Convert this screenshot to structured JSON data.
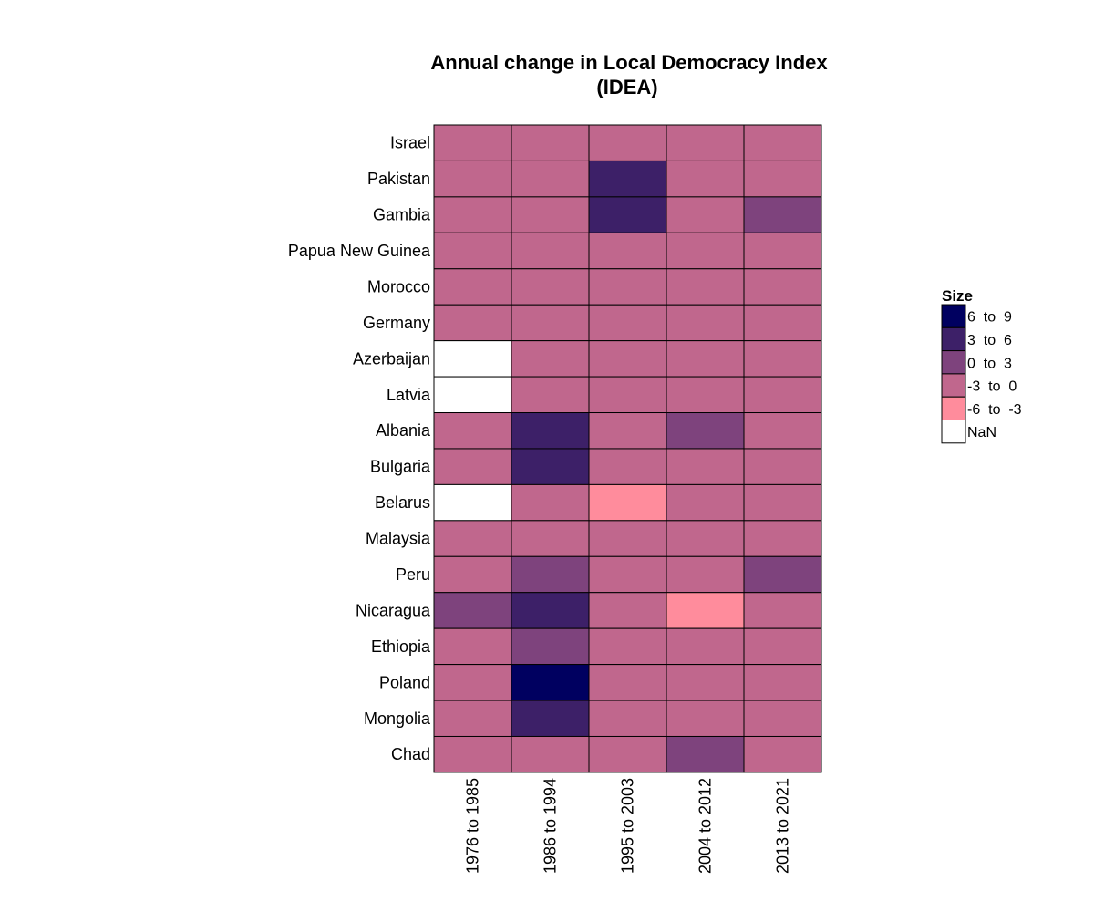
{
  "chart_data": {
    "type": "heatmap",
    "title": [
      "Annual change in Local Democracy Index",
      "(IDEA)"
    ],
    "rows": [
      "Israel",
      "Pakistan",
      "Gambia",
      "Papua New Guinea",
      "Morocco",
      "Germany",
      "Azerbaijan",
      "Latvia",
      "Albania",
      "Bulgaria",
      "Belarus",
      "Malaysia",
      "Peru",
      "Nicaragua",
      "Ethiopia",
      "Poland",
      "Mongolia",
      "Chad"
    ],
    "columns": [
      "1976 to 1985",
      "1986 to 1994",
      "1995 to 2003",
      "2004 to 2012",
      "2013 to 2021"
    ],
    "values": [
      [
        "-3 to 0",
        "-3 to 0",
        "-3 to 0",
        "-3 to 0",
        "-3 to 0"
      ],
      [
        "-3 to 0",
        "-3 to 0",
        "3 to 6",
        "-3 to 0",
        "-3 to 0"
      ],
      [
        "-3 to 0",
        "-3 to 0",
        "3 to 6",
        "-3 to 0",
        "0 to 3"
      ],
      [
        "-3 to 0",
        "-3 to 0",
        "-3 to 0",
        "-3 to 0",
        "-3 to 0"
      ],
      [
        "-3 to 0",
        "-3 to 0",
        "-3 to 0",
        "-3 to 0",
        "-3 to 0"
      ],
      [
        "-3 to 0",
        "-3 to 0",
        "-3 to 0",
        "-3 to 0",
        "-3 to 0"
      ],
      [
        "NaN",
        "-3 to 0",
        "-3 to 0",
        "-3 to 0",
        "-3 to 0"
      ],
      [
        "NaN",
        "-3 to 0",
        "-3 to 0",
        "-3 to 0",
        "-3 to 0"
      ],
      [
        "-3 to 0",
        "3 to 6",
        "-3 to 0",
        "0 to 3",
        "-3 to 0"
      ],
      [
        "-3 to 0",
        "3 to 6",
        "-3 to 0",
        "-3 to 0",
        "-3 to 0"
      ],
      [
        "NaN",
        "-3 to 0",
        "-6 to -3",
        "-3 to 0",
        "-3 to 0"
      ],
      [
        "-3 to 0",
        "-3 to 0",
        "-3 to 0",
        "-3 to 0",
        "-3 to 0"
      ],
      [
        "-3 to 0",
        "0 to 3",
        "-3 to 0",
        "-3 to 0",
        "0 to 3"
      ],
      [
        "0 to 3",
        "3 to 6",
        "-3 to 0",
        "-6 to -3",
        "-3 to 0"
      ],
      [
        "-3 to 0",
        "0 to 3",
        "-3 to 0",
        "-3 to 0",
        "-3 to 0"
      ],
      [
        "-3 to 0",
        "6 to 9",
        "-3 to 0",
        "-3 to 0",
        "-3 to 0"
      ],
      [
        "-3 to 0",
        "3 to 6",
        "-3 to 0",
        "-3 to 0",
        "-3 to 0"
      ],
      [
        "-3 to 0",
        "-3 to 0",
        "-3 to 0",
        "0 to 3",
        "-3 to 0"
      ]
    ],
    "legend": {
      "title": "Size",
      "placement": "right",
      "items": [
        {
          "label": "6  to  9",
          "key": "6 to 9",
          "color": "#000060"
        },
        {
          "label": "3  to  6",
          "key": "3 to 6",
          "color": "#3D2068"
        },
        {
          "label": "0  to  3",
          "key": "0 to 3",
          "color": "#7E437D"
        },
        {
          "label": "-3  to  0",
          "key": "-3 to 0",
          "color": "#C0678D"
        },
        {
          "label": "-6  to  -3",
          "key": "-6 to -3",
          "color": "#FF8C9C"
        },
        {
          "label": "NaN",
          "key": "NaN",
          "color": "#FFFFFF"
        }
      ]
    }
  }
}
